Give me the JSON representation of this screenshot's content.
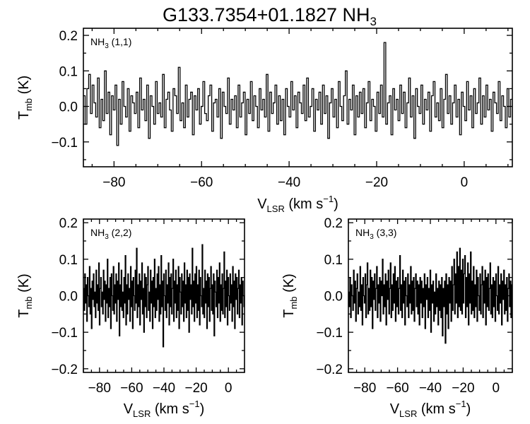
{
  "figure": {
    "title_main": "G133.7354+01.1827 NH",
    "title_sub": "3"
  },
  "chart_data": [
    {
      "type": "line",
      "step": true,
      "panel": "NH3 (1,1)",
      "label_main": "NH",
      "label_sub": "3",
      "label_rest": " (1,1)",
      "xlabel_main": "V",
      "xlabel_sub": "LSR",
      "xlabel_rest": " (km s",
      "xlabel_sup": "−1",
      "xlabel_close": ")",
      "ylabel_main": "T",
      "ylabel_sub": "mb",
      "ylabel_rest": " (K)",
      "xlim": [
        -87,
        11
      ],
      "ylim": [
        -0.17,
        0.22
      ],
      "xticks": [
        -80,
        -60,
        -40,
        -20,
        0
      ],
      "xtick_labels": [
        "−80",
        "−60",
        "−40",
        "−20",
        "0"
      ],
      "yticks": [
        -0.1,
        0.0,
        0.1,
        0.2
      ],
      "ytick_labels": [
        "−0.1",
        "0.0",
        "0.1",
        "0.2"
      ],
      "x_step": 0.4,
      "y": [
        0.03,
        -0.05,
        0.05,
        0.09,
        -0.02,
        0.06,
        0.01,
        -0.03,
        0.08,
        -0.06,
        0.02,
        -0.04,
        0.1,
        -0.02,
        0.04,
        -0.08,
        0.03,
        -0.01,
        0.06,
        -0.11,
        0.02,
        -0.05,
        0.07,
        0.0,
        -0.03,
        0.05,
        -0.07,
        0.03,
        0.01,
        -0.02,
        0.04,
        -0.06,
        0.08,
        -0.01,
        0.02,
        -0.04,
        0.06,
        -0.09,
        0.03,
        0.0,
        -0.05,
        0.07,
        -0.02,
        0.01,
        -0.03,
        0.09,
        -0.06,
        0.02,
        0.04,
        -0.01,
        -0.07,
        0.05,
        0.03,
        -0.02,
        0.11,
        -0.04,
        0.01,
        -0.06,
        0.06,
        -0.03,
        0.02,
        0.04,
        -0.08,
        0.03,
        -0.01,
        0.05,
        -0.05,
        0.0,
        0.07,
        -0.02,
        -0.04,
        0.03,
        0.06,
        -0.07,
        0.01,
        0.02,
        -0.03,
        0.05,
        -0.09,
        0.04,
        0.0,
        -0.02,
        0.08,
        -0.05,
        0.02,
        -0.01,
        0.03,
        -0.06,
        0.06,
        -0.03,
        0.01,
        0.04,
        -0.08,
        0.02,
        -0.02,
        0.07,
        -0.04,
        0.03,
        0.0,
        -0.06,
        0.05,
        -0.01,
        0.02,
        -0.03,
        0.09,
        -0.07,
        0.04,
        -0.02,
        0.01,
        0.06,
        -0.05,
        0.03,
        -0.04,
        0.02,
        -0.08,
        0.05,
        0.0,
        -0.03,
        0.07,
        -0.01,
        0.03,
        -0.06,
        0.04,
        0.01,
        -0.02,
        0.06,
        -0.04,
        0.08,
        -0.03,
        0.0,
        0.05,
        -0.07,
        0.02,
        -0.01,
        0.04,
        -0.05,
        0.06,
        -0.02,
        0.03,
        -0.09,
        0.01,
        0.05,
        -0.03,
        0.02,
        -0.06,
        0.07,
        0.0,
        -0.04,
        0.03,
        0.1,
        -0.05,
        0.02,
        -0.01,
        0.06,
        -0.08,
        0.03,
        -0.03,
        0.04,
        -0.02,
        0.05,
        -0.06,
        0.01,
        0.07,
        -0.04,
        0.02,
        0.0,
        -0.07,
        0.04,
        -0.02,
        0.06,
        -0.03,
        0.18,
        -0.05,
        0.01,
        0.03,
        -0.08,
        0.05,
        -0.01,
        0.02,
        -0.04,
        0.06,
        -0.02,
        0.04,
        -0.06,
        0.01,
        0.08,
        -0.03,
        0.03,
        -0.09,
        0.05,
        0.0,
        -0.02,
        0.06,
        -0.05,
        0.02,
        -0.01,
        0.04,
        -0.07,
        0.03,
        0.07,
        -0.03,
        0.01,
        -0.04,
        0.05,
        -0.06,
        0.02,
        0.09,
        -0.02,
        0.03,
        -0.05,
        0.01,
        0.06,
        -0.03,
        0.02,
        -0.08,
        0.04,
        0.0,
        -0.04,
        0.07,
        -0.01,
        0.03,
        -0.06,
        0.05,
        -0.02,
        0.01,
        0.08,
        -0.05,
        0.03,
        -0.03,
        0.06,
        -0.01,
        0.02,
        -0.07,
        0.04,
        0.01,
        -0.02,
        0.07,
        -0.04,
        0.03,
        0.0,
        -0.06,
        0.05,
        -0.03,
        0.02
      ]
    },
    {
      "type": "line",
      "step": true,
      "panel": "NH3 (2,2)",
      "label_main": "NH",
      "label_sub": "3",
      "label_rest": " (2,2)",
      "xlabel_main": "V",
      "xlabel_sub": "LSR",
      "xlabel_rest": " (km s",
      "xlabel_sup": "−1",
      "xlabel_close": ")",
      "ylabel_main": "T",
      "ylabel_sub": "mb",
      "ylabel_rest": " (K)",
      "xlim": [
        -90,
        10
      ],
      "ylim": [
        -0.21,
        0.21
      ],
      "xticks": [
        -80,
        -60,
        -40,
        -20,
        0
      ],
      "xtick_labels": [
        "−80",
        "−60",
        "−40",
        "−20",
        "0"
      ],
      "yticks": [
        -0.2,
        -0.1,
        0.0,
        0.1,
        0.2
      ],
      "ytick_labels": [
        "−0.2",
        "−0.1",
        "0.0",
        "0.1",
        "0.2"
      ],
      "x_step": 0.4,
      "y": [
        0.02,
        -0.04,
        0.06,
        -0.02,
        0.03,
        -0.07,
        0.05,
        0.0,
        -0.03,
        0.08,
        -0.05,
        0.02,
        -0.09,
        0.04,
        -0.01,
        0.06,
        -0.03,
        0.01,
        -0.06,
        0.07,
        -0.02,
        0.03,
        -0.04,
        0.09,
        -0.08,
        0.02,
        0.05,
        -0.03,
        0.01,
        -0.05,
        0.07,
        -0.01,
        0.04,
        -0.07,
        0.03,
        -0.02,
        0.1,
        -0.06,
        0.02,
        -0.03,
        0.05,
        -0.09,
        0.06,
        0.0,
        -0.04,
        0.08,
        -0.05,
        0.03,
        -0.02,
        0.06,
        -0.07,
        0.04,
        -0.01,
        0.09,
        -0.11,
        0.03,
        -0.03,
        0.07,
        -0.04,
        0.01,
        -0.06,
        0.05,
        -0.02,
        0.11,
        -0.08,
        0.03,
        -0.05,
        0.06,
        -0.01,
        0.02,
        -0.07,
        0.08,
        -0.03,
        0.04,
        -0.09,
        0.05,
        0.0,
        -0.04,
        0.07,
        -0.02,
        0.13,
        -0.06,
        0.03,
        -0.03,
        0.06,
        -0.08,
        0.04,
        -0.01,
        0.09,
        -0.05,
        0.02,
        -0.1,
        0.06,
        -0.03,
        0.05,
        -0.06,
        0.03,
        0.08,
        -0.04,
        0.01,
        -0.07,
        0.07,
        -0.02,
        0.04,
        -0.09,
        0.05,
        -0.03,
        0.1,
        -0.06,
        0.02,
        -0.04,
        0.06,
        -0.01,
        0.08,
        -0.07,
        0.03,
        -0.05,
        0.11,
        -0.03,
        0.04,
        -0.14,
        0.06,
        0.0,
        -0.04,
        0.07,
        -0.06,
        0.03,
        -0.02,
        0.09,
        -0.08,
        0.05,
        -0.03,
        0.06,
        -0.05,
        0.02,
        0.1,
        -0.07,
        0.04,
        -0.02,
        0.07,
        -0.06,
        0.03,
        -0.04,
        0.08,
        -0.09,
        0.05,
        0.01,
        -0.05,
        0.06,
        -0.03,
        0.04,
        -0.07,
        0.09,
        -0.02,
        0.03,
        -0.06,
        0.07,
        -0.04,
        0.05,
        -0.1,
        0.06,
        -0.01,
        0.03,
        -0.05,
        0.13,
        -0.03,
        0.04,
        -0.07,
        0.06,
        -0.02,
        0.08,
        -0.06,
        0.03,
        -0.04,
        0.07,
        -0.08,
        0.05,
        0.0,
        -0.03,
        0.14,
        -0.05,
        0.02,
        -0.06,
        0.07,
        -0.02,
        0.04,
        -0.09,
        0.06,
        -0.03,
        0.05,
        -0.07,
        0.02,
        0.08,
        -0.04,
        0.03,
        -0.05,
        0.06,
        -0.11,
        0.04,
        0.01,
        -0.03,
        0.07,
        -0.06,
        0.05,
        -0.02,
        0.09,
        -0.07,
        0.03,
        -0.04,
        0.06,
        -0.05,
        0.02,
        0.12,
        -0.06,
        0.04,
        -0.03,
        0.07,
        -0.08,
        0.05,
        0.0,
        -0.04,
        0.06,
        -0.02,
        0.03,
        -0.07,
        0.08,
        -0.03,
        0.04,
        -0.09,
        0.06,
        -0.01,
        0.05,
        -0.05,
        0.02,
        0.07,
        -0.06,
        0.03,
        -0.02,
        0.05,
        -0.08,
        0.04,
        0.0,
        -0.03
      ]
    },
    {
      "type": "line",
      "step": true,
      "panel": "NH3 (3,3)",
      "label_main": "NH",
      "label_sub": "3",
      "label_rest": " (3,3)",
      "xlabel_main": "V",
      "xlabel_sub": "LSR",
      "xlabel_rest": " (km s",
      "xlabel_sup": "−1",
      "xlabel_close": ")",
      "ylabel_main": "T",
      "ylabel_sub": "mb",
      "ylabel_rest": " (K)",
      "xlim": [
        -90,
        10
      ],
      "ylim": [
        -0.21,
        0.21
      ],
      "xticks": [
        -80,
        -60,
        -40,
        -20,
        0
      ],
      "xtick_labels": [
        "−80",
        "−60",
        "−40",
        "−20",
        "0"
      ],
      "yticks": [
        -0.2,
        -0.1,
        0.0,
        0.1,
        0.2
      ],
      "ytick_labels": [
        "−0.2",
        "−0.1",
        "0.0",
        "0.1",
        "0.2"
      ],
      "x_step": 0.4,
      "y": [
        0.01,
        -0.03,
        0.05,
        -0.06,
        0.03,
        0.0,
        -0.04,
        0.07,
        -0.02,
        0.04,
        -0.07,
        0.02,
        0.06,
        -0.05,
        0.01,
        -0.03,
        0.08,
        -0.04,
        0.03,
        -0.08,
        0.05,
        0.0,
        -0.02,
        0.06,
        -0.06,
        0.03,
        0.09,
        -0.05,
        0.02,
        -0.04,
        0.07,
        -0.03,
        0.05,
        -0.09,
        0.04,
        -0.01,
        0.06,
        -0.04,
        0.02,
        0.08,
        -0.06,
        0.03,
        -0.02,
        0.05,
        -0.07,
        0.04,
        0.0,
        0.1,
        -0.05,
        0.03,
        -0.03,
        0.06,
        -0.08,
        0.04,
        -0.01,
        0.07,
        -0.05,
        0.02,
        0.09,
        -0.06,
        0.03,
        -0.04,
        0.06,
        -0.02,
        0.08,
        -0.07,
        0.04,
        -0.03,
        0.05,
        -0.05,
        0.02,
        0.11,
        -0.04,
        0.03,
        -0.06,
        0.07,
        -0.02,
        0.04,
        -0.08,
        0.05,
        0.0,
        -0.03,
        0.06,
        -0.06,
        0.03,
        -0.02,
        0.08,
        -0.05,
        0.04,
        -0.04,
        0.05,
        -0.07,
        0.02,
        0.06,
        -0.03,
        0.04,
        -0.05,
        0.03,
        -0.08,
        0.05,
        -0.02,
        0.04,
        -0.06,
        0.02,
        -0.03,
        0.06,
        -0.09,
        0.03,
        -0.01,
        0.05,
        -0.06,
        0.02,
        -0.04,
        0.07,
        -0.1,
        0.03,
        -0.02,
        0.04,
        -0.07,
        0.01,
        -0.05,
        0.06,
        -0.03,
        0.02,
        -0.08,
        0.04,
        -0.04,
        0.03,
        -0.06,
        0.05,
        -0.11,
        0.02,
        -0.03,
        0.04,
        -0.13,
        0.06,
        -0.05,
        0.03,
        -0.09,
        0.05,
        -0.02,
        0.04,
        -0.07,
        0.08,
        -0.04,
        0.03,
        0.1,
        -0.05,
        0.06,
        -0.02,
        0.12,
        -0.06,
        0.08,
        -0.03,
        0.13,
        -0.04,
        0.07,
        -0.05,
        0.1,
        -0.02,
        0.06,
        0.11,
        -0.06,
        0.05,
        -0.03,
        0.09,
        -0.08,
        0.06,
        -0.02,
        0.12,
        -0.05,
        0.04,
        -0.04,
        0.08,
        -0.06,
        0.03,
        -0.03,
        0.07,
        -0.07,
        0.05,
        0.0,
        -0.04,
        0.06,
        -0.05,
        0.03,
        0.08,
        -0.06,
        0.04,
        -0.02,
        0.07,
        -0.08,
        0.05,
        -0.03,
        0.06,
        -0.04,
        0.02,
        0.09,
        -0.05,
        0.03,
        -0.06,
        0.05,
        -0.03,
        0.04,
        -0.07,
        0.06,
        0.0,
        -0.04,
        0.08,
        -0.05,
        0.03,
        -0.02,
        0.06,
        -0.08,
        0.04,
        -0.01,
        0.07,
        -0.05,
        0.03,
        -0.04,
        0.05,
        -0.07,
        0.02,
        0.06,
        -0.03,
        0.04,
        -0.06,
        0.03
      ]
    }
  ]
}
